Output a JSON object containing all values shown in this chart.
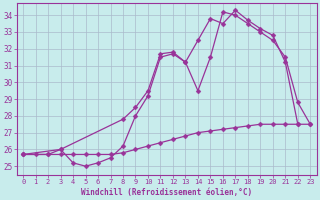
{
  "background_color": "#c8ecec",
  "line_color": "#993399",
  "grid_color": "#aabbcc",
  "xlabel": "Windchill (Refroidissement éolien,°C)",
  "xlabel_color": "#993399",
  "tick_color": "#993399",
  "xlim": [
    -0.5,
    23.5
  ],
  "ylim": [
    24.5,
    34.7
  ],
  "yticks": [
    25,
    26,
    27,
    28,
    29,
    30,
    31,
    32,
    33,
    34
  ],
  "xticks": [
    0,
    1,
    2,
    3,
    4,
    5,
    6,
    7,
    8,
    9,
    10,
    11,
    12,
    13,
    14,
    15,
    16,
    17,
    18,
    19,
    20,
    21,
    22,
    23
  ],
  "curve1_x": [
    0,
    1,
    2,
    3,
    4,
    5,
    6,
    7,
    8,
    9,
    10,
    11,
    12,
    13,
    14,
    15,
    16,
    17,
    18,
    19,
    20,
    21,
    22,
    23
  ],
  "curve1_y": [
    25.7,
    25.7,
    25.7,
    25.7,
    25.7,
    25.7,
    25.7,
    25.7,
    25.8,
    26.0,
    26.2,
    26.4,
    26.6,
    26.8,
    27.0,
    27.1,
    27.2,
    27.3,
    27.4,
    27.5,
    27.5,
    27.5,
    27.5,
    27.5
  ],
  "curve2_x": [
    0,
    2,
    3,
    4,
    5,
    6,
    7,
    8,
    9,
    10,
    11,
    12,
    13,
    14,
    15,
    16,
    17,
    18,
    19,
    20,
    21,
    22,
    23
  ],
  "curve2_y": [
    25.7,
    25.7,
    26.0,
    25.2,
    25.0,
    25.2,
    25.5,
    26.2,
    28.0,
    29.2,
    31.5,
    31.7,
    31.2,
    29.5,
    31.5,
    34.2,
    34.0,
    33.5,
    33.0,
    32.5,
    31.5,
    28.8,
    27.5
  ],
  "curve3_x": [
    0,
    3,
    8,
    9,
    10,
    11,
    12,
    13,
    14,
    15,
    16,
    17,
    18,
    19,
    20,
    21,
    22
  ],
  "curve3_y": [
    25.7,
    26.0,
    27.8,
    28.5,
    29.5,
    31.7,
    31.8,
    31.2,
    32.5,
    33.8,
    33.5,
    34.3,
    33.7,
    33.2,
    32.8,
    31.2,
    27.5
  ]
}
